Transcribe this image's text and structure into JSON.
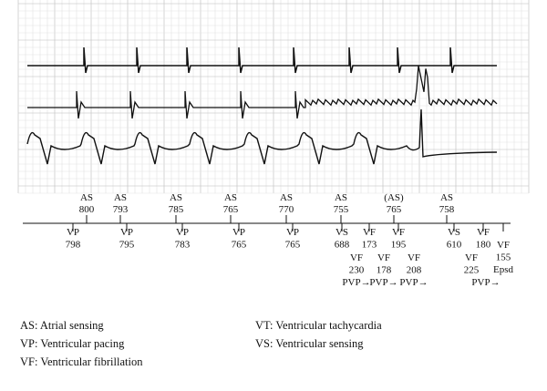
{
  "atrial_markers": [
    {
      "label": "AS",
      "interval": "800"
    },
    {
      "label": "AS",
      "interval": "793"
    },
    {
      "label": "AS",
      "interval": "785"
    },
    {
      "label": "AS",
      "interval": "765"
    },
    {
      "label": "AS",
      "interval": "770"
    },
    {
      "label": "AS",
      "interval": "755"
    },
    {
      "label": "(AS)",
      "interval": "765"
    },
    {
      "label": "AS",
      "interval": "758"
    }
  ],
  "ventricular_markers": [
    {
      "lines": [
        "VP",
        "798"
      ]
    },
    {
      "lines": [
        "VP",
        "795"
      ]
    },
    {
      "lines": [
        "VP",
        "783"
      ]
    },
    {
      "lines": [
        "VP",
        "765"
      ]
    },
    {
      "lines": [
        "VP",
        "765"
      ]
    },
    {
      "lines": [
        "VS",
        "688"
      ]
    },
    {
      "lines": [
        "VF",
        "173"
      ]
    },
    {
      "lines": [
        "VF",
        "195"
      ]
    },
    {
      "lines": [
        "VS",
        "610"
      ]
    },
    {
      "lines": [
        "VF",
        "180"
      ]
    },
    {
      "lines": [
        "VF",
        "155",
        "Epsd"
      ]
    },
    {
      "lines": [
        "VF",
        "230",
        "PVP→"
      ]
    },
    {
      "lines": [
        "VF",
        "178",
        "PVP→"
      ]
    },
    {
      "lines": [
        "VF",
        "208",
        "PVP→"
      ]
    },
    {
      "lines": [
        "VF",
        "225"
      ]
    },
    {
      "lines": [
        "PVP→"
      ]
    }
  ],
  "legend": {
    "left": [
      "AS: Atrial sensing",
      "VP: Ventricular pacing",
      "VF: Ventricular fibrillation"
    ],
    "right": [
      "VT: Ventricular tachycardia",
      "VS: Ventricular sensing"
    ]
  }
}
